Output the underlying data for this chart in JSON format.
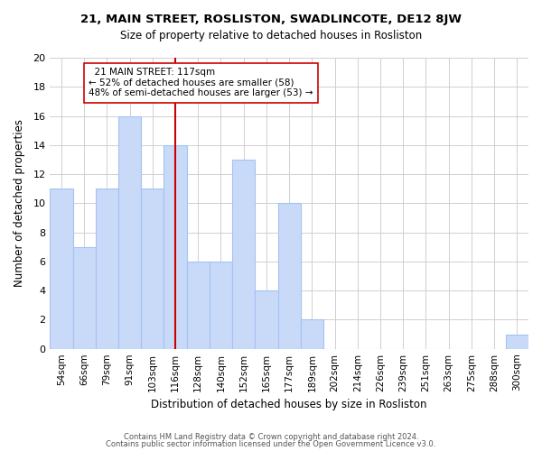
{
  "title": "21, MAIN STREET, ROSLISTON, SWADLINCOTE, DE12 8JW",
  "subtitle": "Size of property relative to detached houses in Rosliston",
  "xlabel": "Distribution of detached houses by size in Rosliston",
  "ylabel": "Number of detached properties",
  "bar_labels": [
    "54sqm",
    "66sqm",
    "79sqm",
    "91sqm",
    "103sqm",
    "116sqm",
    "128sqm",
    "140sqm",
    "152sqm",
    "165sqm",
    "177sqm",
    "189sqm",
    "202sqm",
    "214sqm",
    "226sqm",
    "239sqm",
    "251sqm",
    "263sqm",
    "275sqm",
    "288sqm",
    "300sqm"
  ],
  "bar_values": [
    11,
    7,
    11,
    16,
    11,
    14,
    6,
    6,
    13,
    4,
    10,
    2,
    0,
    0,
    0,
    0,
    0,
    0,
    0,
    0,
    1
  ],
  "bar_color": "#c9daf8",
  "bar_edge_color": "#a4c2f4",
  "reference_line_color": "#cc0000",
  "annotation_title": "21 MAIN STREET: 117sqm",
  "annotation_line1": "← 52% of detached houses are smaller (58)",
  "annotation_line2": "48% of semi-detached houses are larger (53) →",
  "annotation_box_color": "#ffffff",
  "annotation_box_edge": "#cc0000",
  "ylim": [
    0,
    20
  ],
  "yticks": [
    0,
    2,
    4,
    6,
    8,
    10,
    12,
    14,
    16,
    18,
    20
  ],
  "footer_line1": "Contains HM Land Registry data © Crown copyright and database right 2024.",
  "footer_line2": "Contains public sector information licensed under the Open Government Licence v3.0.",
  "bg_color": "#ffffff",
  "grid_color": "#d0d0d0"
}
